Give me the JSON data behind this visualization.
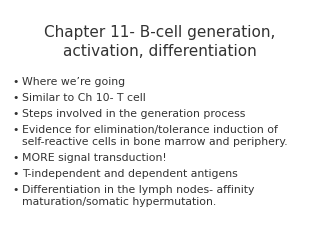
{
  "title_line1": "Chapter 11- B-cell generation,",
  "title_line2": "activation, differentiation",
  "title_fontsize": 11.0,
  "title_color": "#333333",
  "bullet_items": [
    "Where we’re going",
    "Similar to Ch 10- T cell",
    "Steps involved in the generation process",
    "Evidence for elimination/tolerance induction of\nself-reactive cells in bone marrow and periphery.",
    "MORE signal transduction!",
    "T-independent and dependent antigens",
    "Differentiation in the lymph nodes- affinity\nmaturation/somatic hypermutation."
  ],
  "bullet_fontsize": 7.8,
  "bullet_color": "#333333",
  "background_color": "#ffffff",
  "bullet_symbol": "•"
}
